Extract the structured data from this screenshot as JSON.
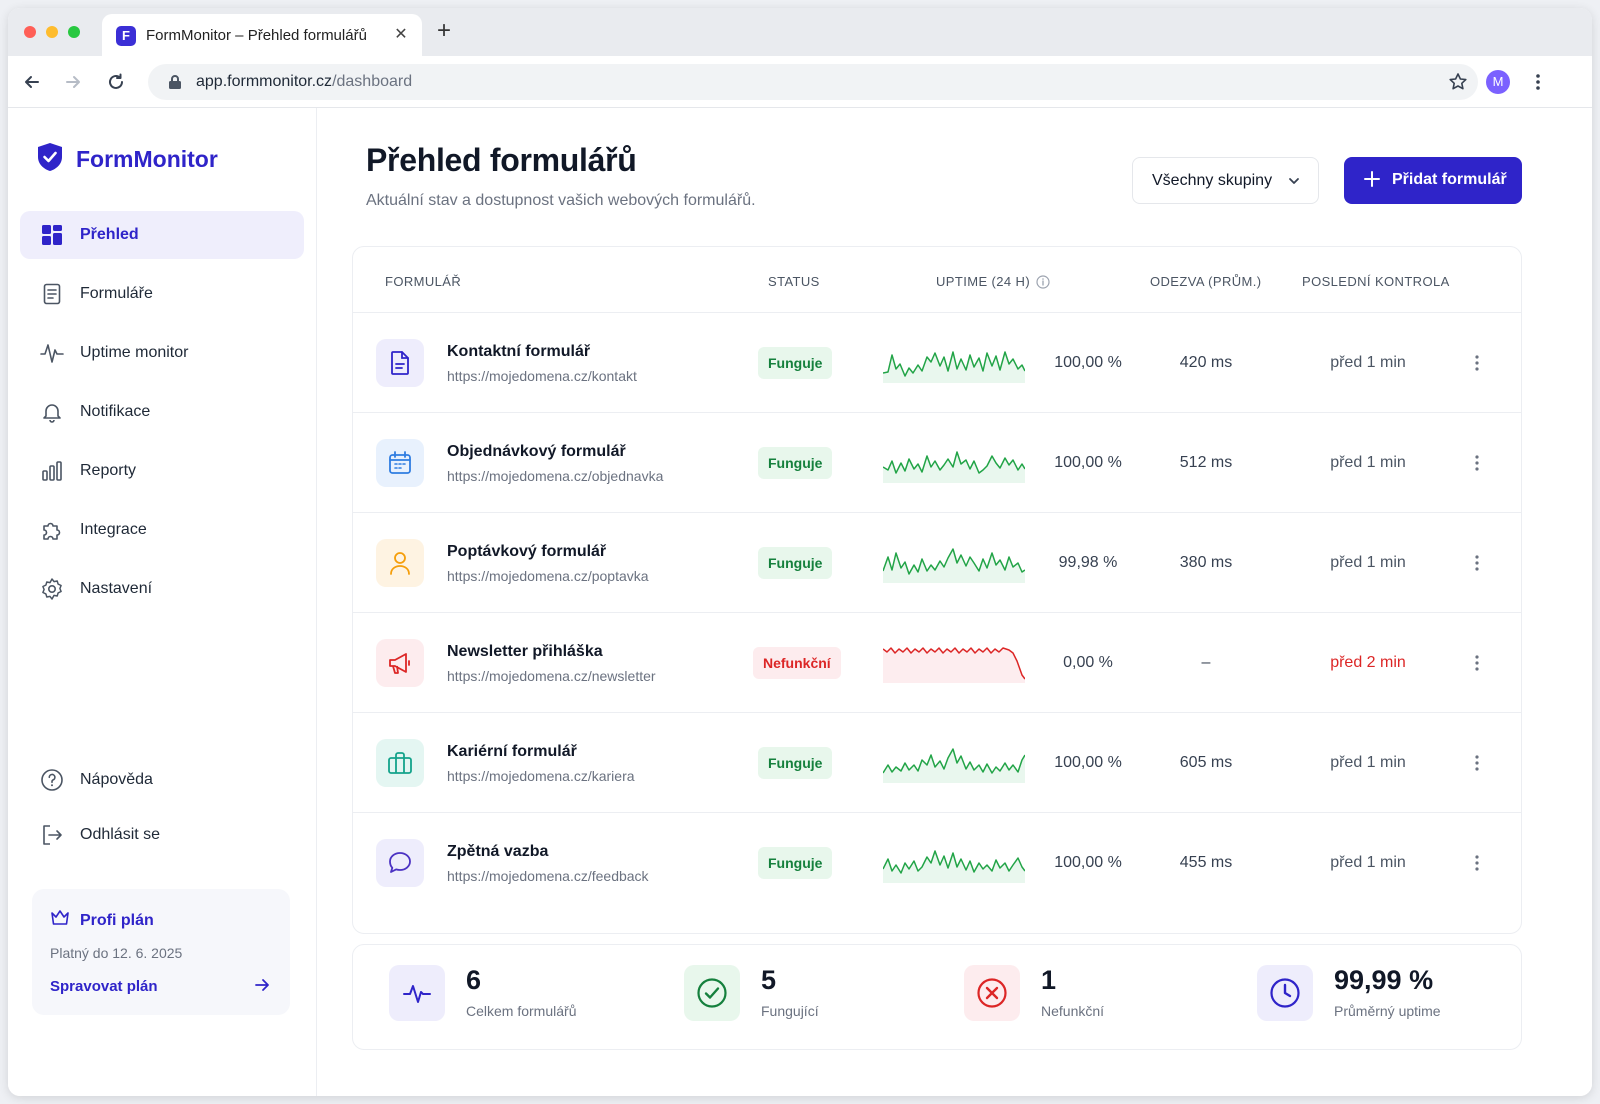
{
  "browser": {
    "tab_title": "FormMonitor – Přehled formulářů",
    "favicon_letter": "F",
    "url_host": "app.formmonitor.cz",
    "url_path": "/dashboard",
    "profile_initial": "M"
  },
  "sidebar": {
    "brand": "FormMonitor",
    "items": [
      {
        "label": "Přehled",
        "icon": "dashboard-grid-icon",
        "active": true
      },
      {
        "label": "Formuláře",
        "icon": "document-icon"
      },
      {
        "label": "Uptime monitor",
        "icon": "pulse-icon"
      },
      {
        "label": "Notifikace",
        "icon": "bell-icon"
      },
      {
        "label": "Reporty",
        "icon": "bar-chart-icon"
      },
      {
        "label": "Integrace",
        "icon": "puzzle-icon"
      },
      {
        "label": "Nastavení",
        "icon": "gear-icon"
      }
    ],
    "bottom_items": [
      {
        "label": "Nápověda",
        "icon": "help-circle-icon"
      },
      {
        "label": "Odhlásit se",
        "icon": "logout-icon"
      }
    ],
    "plan": {
      "title": "Profi plán",
      "valid_until": "Platný do 12. 6. 2025",
      "manage_label": "Spravovat plán"
    }
  },
  "main": {
    "title": "Přehled formulářů",
    "subtitle": "Aktuální stav a dostupnost vašich webových formulářů.",
    "group_filter": "Všechny skupiny",
    "add_button": "Přidat formulář",
    "columns": [
      "Formulář",
      "Status",
      "Uptime (24 h)",
      "Odezva (prům.)",
      "Poslední kontrola"
    ],
    "rows": [
      {
        "name": "Kontaktní formulář",
        "url": "https://mojedomena.cz/kontakt",
        "status": "Funguje",
        "uptime": "100,00 %",
        "response": "420 ms",
        "last_check": "před 1 min",
        "icon": "document-icon",
        "state": "ok"
      },
      {
        "name": "Objednávkový formulář",
        "url": "https://mojedomena.cz/objednavka",
        "status": "Funguje",
        "uptime": "100,00 %",
        "response": "512 ms",
        "last_check": "před 1 min",
        "icon": "calendar-icon",
        "state": "ok"
      },
      {
        "name": "Poptávkový formulář",
        "url": "https://mojedomena.cz/poptavka",
        "status": "Funguje",
        "uptime": "99,98 %",
        "response": "380 ms",
        "last_check": "před 1 min",
        "icon": "user-icon",
        "state": "ok"
      },
      {
        "name": "Newsletter přihláška",
        "url": "https://mojedomena.cz/newsletter",
        "status": "Nefunkční",
        "uptime": "0,00 %",
        "response": "–",
        "last_check": "před 2 min",
        "icon": "megaphone-icon",
        "state": "err"
      },
      {
        "name": "Kariérní formulář",
        "url": "https://mojedomena.cz/kariera",
        "status": "Funguje",
        "uptime": "100,00 %",
        "response": "605 ms",
        "last_check": "před 1 min",
        "icon": "briefcase-icon",
        "state": "ok"
      },
      {
        "name": "Zpětná vazba",
        "url": "https://mojedomena.cz/feedback",
        "status": "Funguje",
        "uptime": "100,00 %",
        "response": "455 ms",
        "last_check": "před 1 min",
        "icon": "chat-bubble-icon",
        "state": "ok"
      }
    ]
  },
  "stats": [
    {
      "value": "6",
      "label": "Celkem formulářů",
      "icon": "pulse-icon"
    },
    {
      "value": "5",
      "label": "Fungující",
      "icon": "check-circle-icon"
    },
    {
      "value": "1",
      "label": "Nefunkční",
      "icon": "x-circle-icon"
    },
    {
      "value": "99,99 %",
      "label": "Průměrný uptime",
      "icon": "clock-icon"
    }
  ],
  "colors": {
    "accent": "#2f24c9",
    "ok": "#15803d",
    "ok_bg": "#e8f7ec",
    "error": "#dc2626",
    "error_bg": "#fdecee"
  }
}
